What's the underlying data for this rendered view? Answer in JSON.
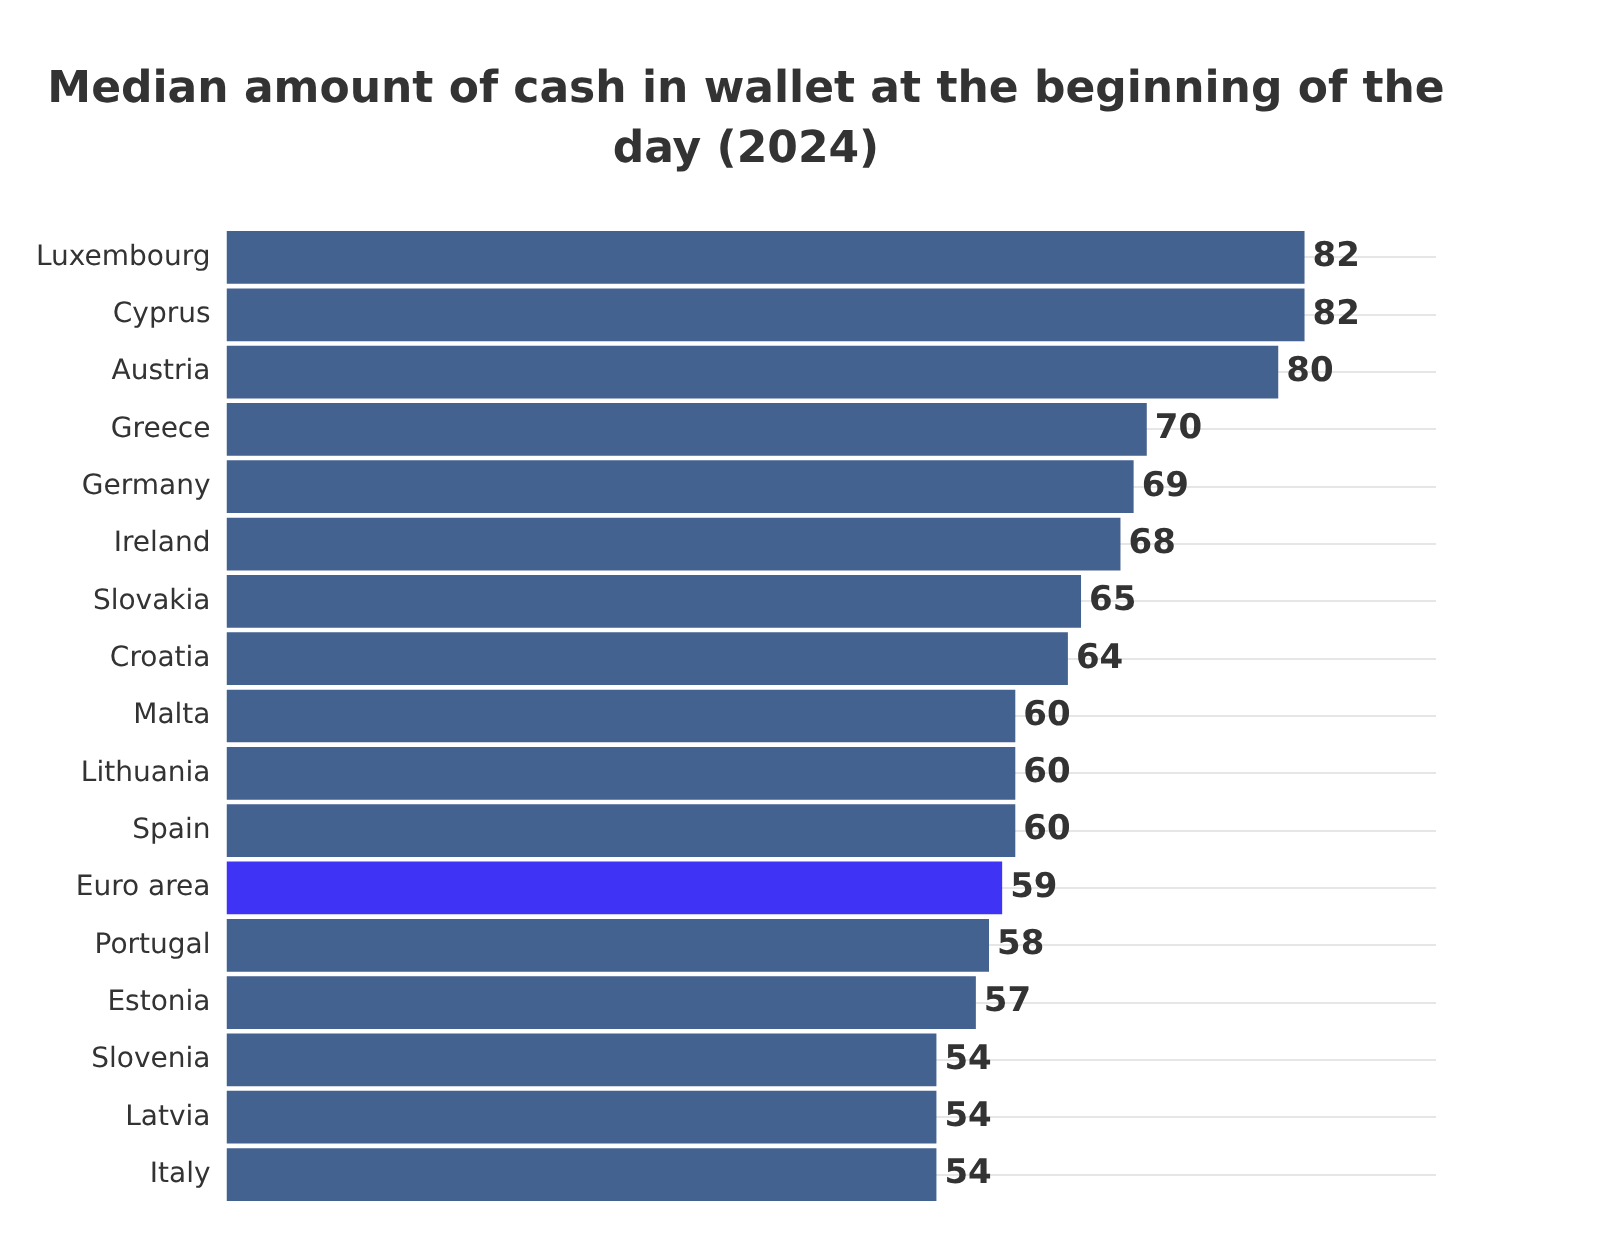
{
  "chart_data": {
    "type": "bar",
    "orientation": "horizontal",
    "title": "Median amount of cash in wallet at the beginning of the day (2024)",
    "categories": [
      "Luxembourg",
      "Cyprus",
      "Austria",
      "Greece",
      "Germany",
      "Ireland",
      "Slovakia",
      "Croatia",
      "Malta",
      "Lithuania",
      "Spain",
      "Euro area",
      "Portugal",
      "Estonia",
      "Slovenia",
      "Latvia",
      "Italy"
    ],
    "values": [
      82,
      82,
      80,
      70,
      69,
      68,
      65,
      64,
      60,
      60,
      60,
      59,
      58,
      57,
      54,
      54,
      54
    ],
    "colors": [
      "#44628f",
      "#44628f",
      "#44628f",
      "#44628f",
      "#44628f",
      "#44628f",
      "#44628f",
      "#44628f",
      "#44628f",
      "#44628f",
      "#44628f",
      "#3f33f5",
      "#44628f",
      "#44628f",
      "#44628f",
      "#44628f",
      "#44628f"
    ],
    "xlim": [
      0,
      92
    ],
    "data_labels": true,
    "grid": "y",
    "tick_labels": "y",
    "legend": false
  }
}
